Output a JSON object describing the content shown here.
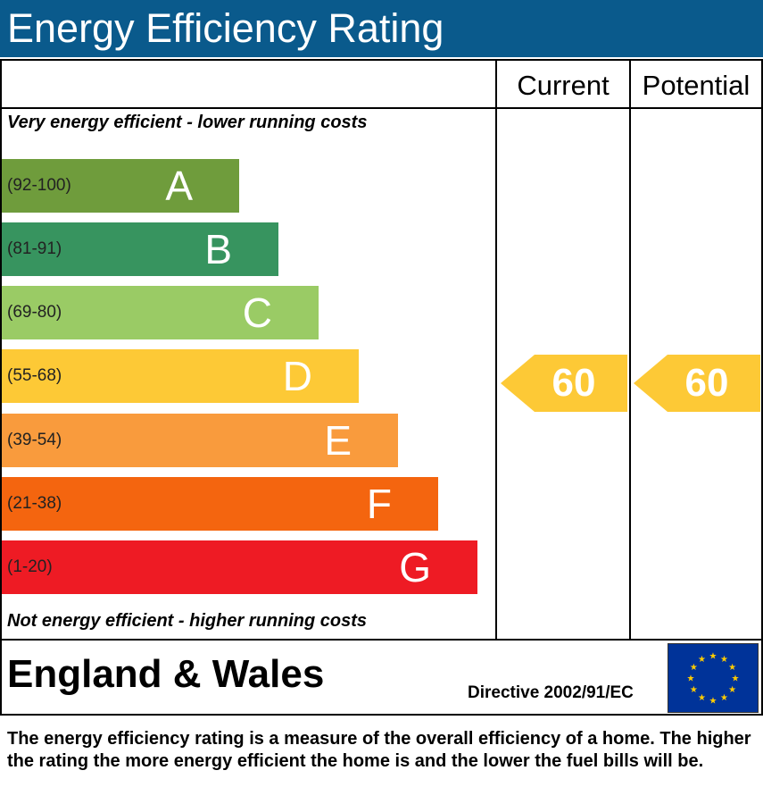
{
  "header": {
    "title": "Energy Efficiency Rating"
  },
  "columns": {
    "current": "Current",
    "potential": "Potential"
  },
  "notes": {
    "top": "Very energy efficient - lower running costs",
    "bottom": "Not energy efficient - higher running costs"
  },
  "chart_data": {
    "type": "bar",
    "title": "Energy Efficiency Rating",
    "bands": [
      {
        "letter": "A",
        "range": "(92-100)",
        "color": "#6f9c3c"
      },
      {
        "letter": "B",
        "range": "(81-91)",
        "color": "#37945f"
      },
      {
        "letter": "C",
        "range": "(69-80)",
        "color": "#9acb65"
      },
      {
        "letter": "D",
        "range": "(55-68)",
        "color": "#fdc936"
      },
      {
        "letter": "E",
        "range": "(39-54)",
        "color": "#f99b3d"
      },
      {
        "letter": "F",
        "range": "(21-38)",
        "color": "#f4650f"
      },
      {
        "letter": "G",
        "range": "(1-20)",
        "color": "#ee1b24"
      }
    ],
    "current": {
      "value": 60,
      "band": "D",
      "color": "#fdc936"
    },
    "potential": {
      "value": 60,
      "band": "D",
      "color": "#fdc936"
    }
  },
  "footer": {
    "region": "England & Wales",
    "directive": "Directive 2002/91/EC",
    "flag_colors": {
      "background": "#003399",
      "stars": "#ffcc00"
    }
  },
  "description": "The energy efficiency rating is a measure of the overall efficiency of a home. The higher the rating the more energy efficient the home is and the lower the fuel bills will be."
}
